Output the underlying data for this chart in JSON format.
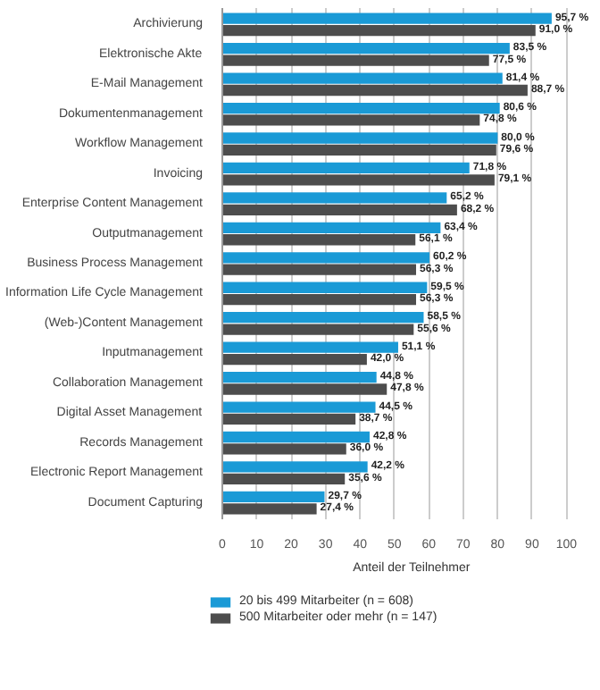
{
  "chart_data": {
    "type": "bar",
    "orientation": "horizontal",
    "xlabel": "Anteil der Teilnehmer",
    "categories": [
      "Archivierung",
      "Elektronische Akte",
      "E-Mail Management",
      "Dokumentenmanagement",
      "Workflow Management",
      "Invoicing",
      "Enterprise Content Management",
      "Outputmanagement",
      "Business Process Management",
      "Information Life Cycle Management",
      "(Web-)Content Management",
      "Inputmanagement",
      "Collaboration Management",
      "Digital Asset Management",
      "Records Management",
      "Electronic Report Management",
      "Document Capturing"
    ],
    "series": [
      {
        "name": "20 bis 499 Mitarbeiter (n = 608)",
        "color": "#1a9ad6",
        "values": [
          95.7,
          83.5,
          81.4,
          80.6,
          80.0,
          71.8,
          65.2,
          63.4,
          60.2,
          59.5,
          58.5,
          51.1,
          44.8,
          44.5,
          42.8,
          42.2,
          29.7
        ],
        "value_labels": [
          "95,7 %",
          "83,5 %",
          "81,4 %",
          "80,6 %",
          "80,0 %",
          "71,8 %",
          "65,2 %",
          "63,4 %",
          "60,2 %",
          "59,5 %",
          "58,5 %",
          "51,1 %",
          "44,8 %",
          "44,5 %",
          "42,8 %",
          "42,2 %",
          "29,7 %"
        ]
      },
      {
        "name": "500 Mitarbeiter oder mehr (n = 147)",
        "color": "#4d4d4d",
        "values": [
          91.0,
          77.5,
          88.7,
          74.8,
          79.6,
          79.1,
          68.2,
          56.1,
          56.3,
          56.3,
          55.6,
          42.0,
          47.8,
          38.7,
          36.0,
          35.6,
          27.4
        ],
        "value_labels": [
          "91,0 %",
          "77,5 %",
          "88,7 %",
          "74,8 %",
          "79,6 %",
          "79,1 %",
          "68,2 %",
          "56,1 %",
          "56,3 %",
          "56,3 %",
          "55,6 %",
          "42,0 %",
          "47,8 %",
          "38,7 %",
          "36,0 %",
          "35,6 %",
          "27,4 %"
        ]
      }
    ],
    "xlim": [
      0,
      100
    ],
    "xticks": [
      0,
      10,
      20,
      30,
      40,
      50,
      60,
      70,
      80,
      90,
      100
    ],
    "grid": "x",
    "legend": "bottom"
  }
}
